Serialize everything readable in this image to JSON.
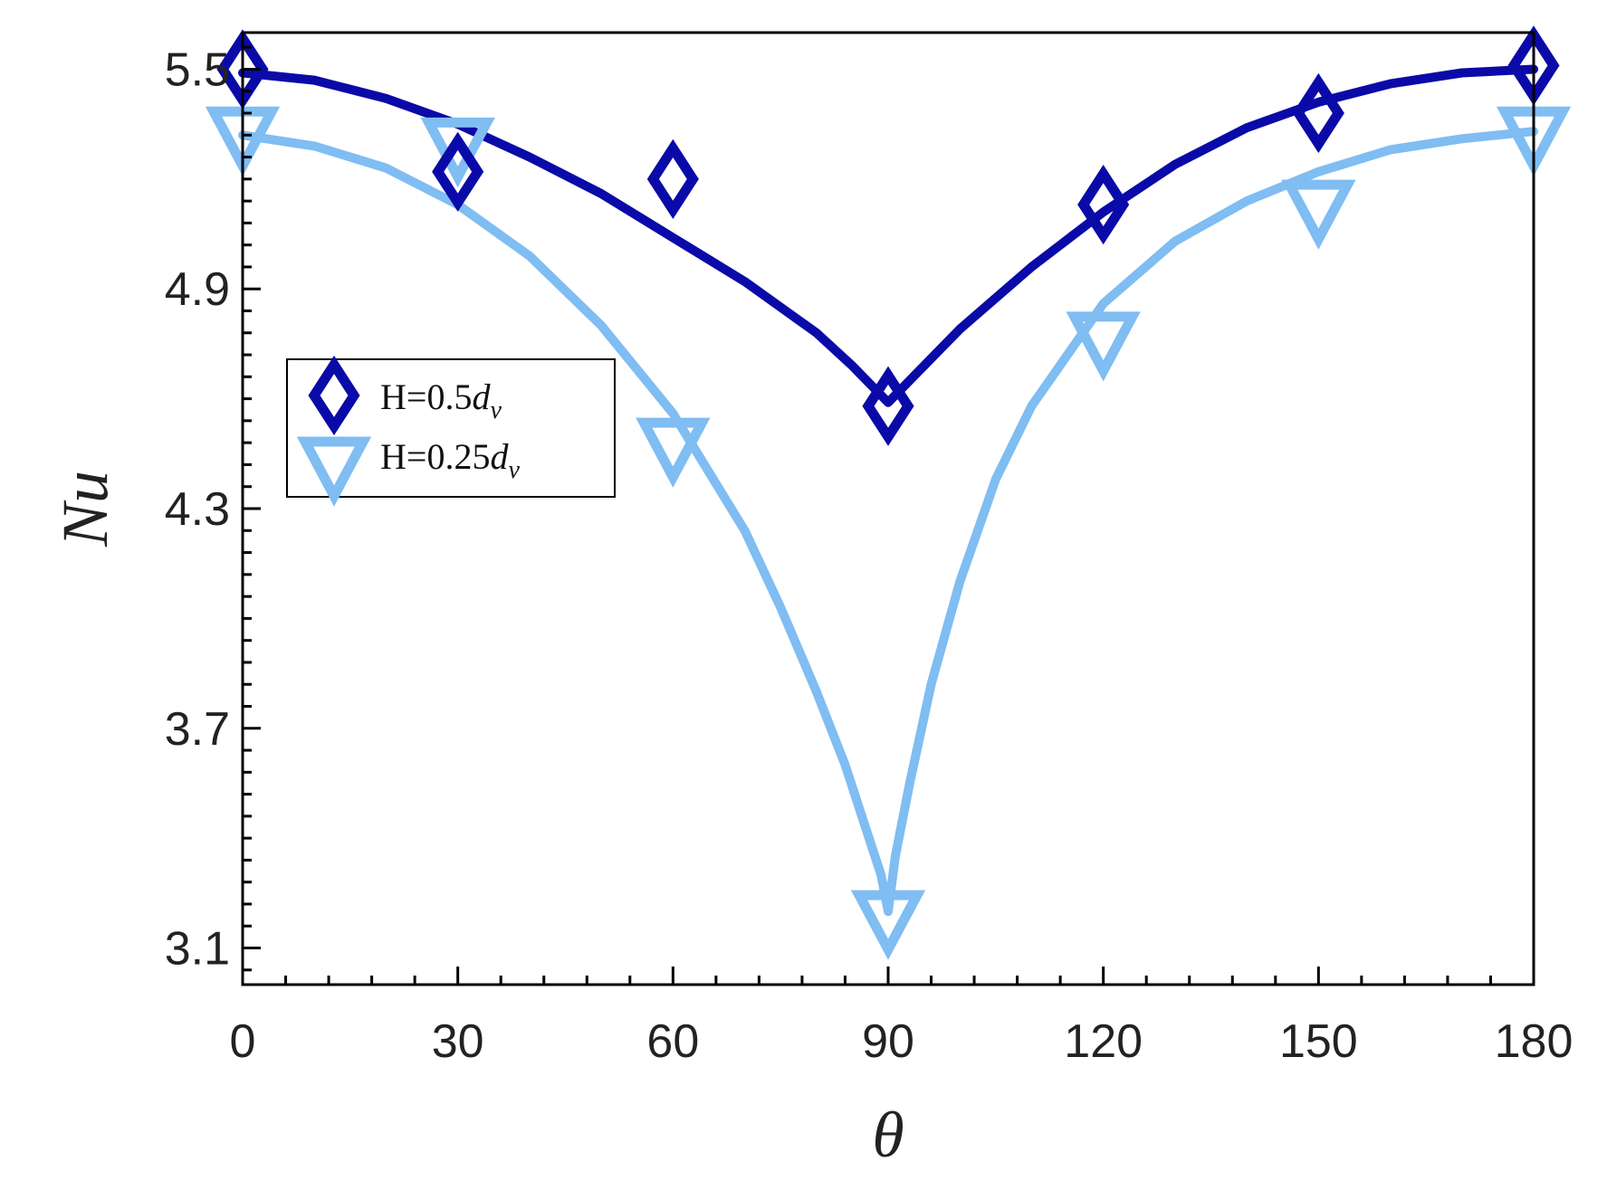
{
  "chart_data": {
    "type": "line",
    "title": "",
    "xlabel": "θ",
    "ylabel": "Nu",
    "xlim": [
      0,
      180
    ],
    "ylim": [
      3.0,
      5.6
    ],
    "x_ticks": [
      0,
      30,
      60,
      90,
      120,
      150,
      180
    ],
    "x_tick_labels": [
      "0",
      "30",
      "60",
      "90",
      "120",
      "150",
      "180"
    ],
    "y_ticks": [
      3.1,
      3.7,
      4.3,
      4.9,
      5.5
    ],
    "y_tick_labels": [
      "3.1",
      "3.7",
      "4.3",
      "4.9",
      "5.5"
    ],
    "grid": false,
    "legend_position": "middle-left",
    "series": [
      {
        "name_main": "H=0.5",
        "name_var": "d",
        "name_sub": "v",
        "color": "#0a0aa8",
        "marker": "diamond",
        "points_x": [
          0,
          30,
          60,
          90,
          120,
          150,
          180
        ],
        "points_y": [
          5.5,
          5.22,
          5.2,
          4.58,
          5.13,
          5.38,
          5.51
        ],
        "curve_x": [
          0,
          10,
          20,
          30,
          40,
          50,
          60,
          70,
          80,
          85,
          90,
          95,
          100,
          110,
          120,
          130,
          140,
          150,
          160,
          170,
          180
        ],
        "curve_y": [
          5.49,
          5.47,
          5.42,
          5.35,
          5.26,
          5.16,
          5.04,
          4.92,
          4.78,
          4.69,
          4.59,
          4.69,
          4.79,
          4.96,
          5.11,
          5.24,
          5.34,
          5.41,
          5.46,
          5.49,
          5.5
        ]
      },
      {
        "name_main": "H=0.25",
        "name_var": "d",
        "name_sub": "v",
        "color": "#7fbdf2",
        "marker": "triangle-down",
        "points_x": [
          0,
          30,
          60,
          90,
          120,
          150,
          180
        ],
        "points_y": [
          5.33,
          5.3,
          4.48,
          3.19,
          4.77,
          5.13,
          5.33
        ],
        "curve_x": [
          0,
          10,
          20,
          30,
          40,
          50,
          60,
          70,
          75,
          80,
          84,
          87,
          89,
          90,
          91,
          93,
          96,
          100,
          105,
          110,
          120,
          130,
          140,
          150,
          160,
          170,
          180
        ],
        "curve_y": [
          5.32,
          5.29,
          5.23,
          5.13,
          4.99,
          4.8,
          4.56,
          4.24,
          4.03,
          3.8,
          3.6,
          3.42,
          3.3,
          3.2,
          3.35,
          3.55,
          3.82,
          4.1,
          4.38,
          4.58,
          4.86,
          5.03,
          5.14,
          5.22,
          5.28,
          5.31,
          5.33
        ]
      }
    ]
  }
}
